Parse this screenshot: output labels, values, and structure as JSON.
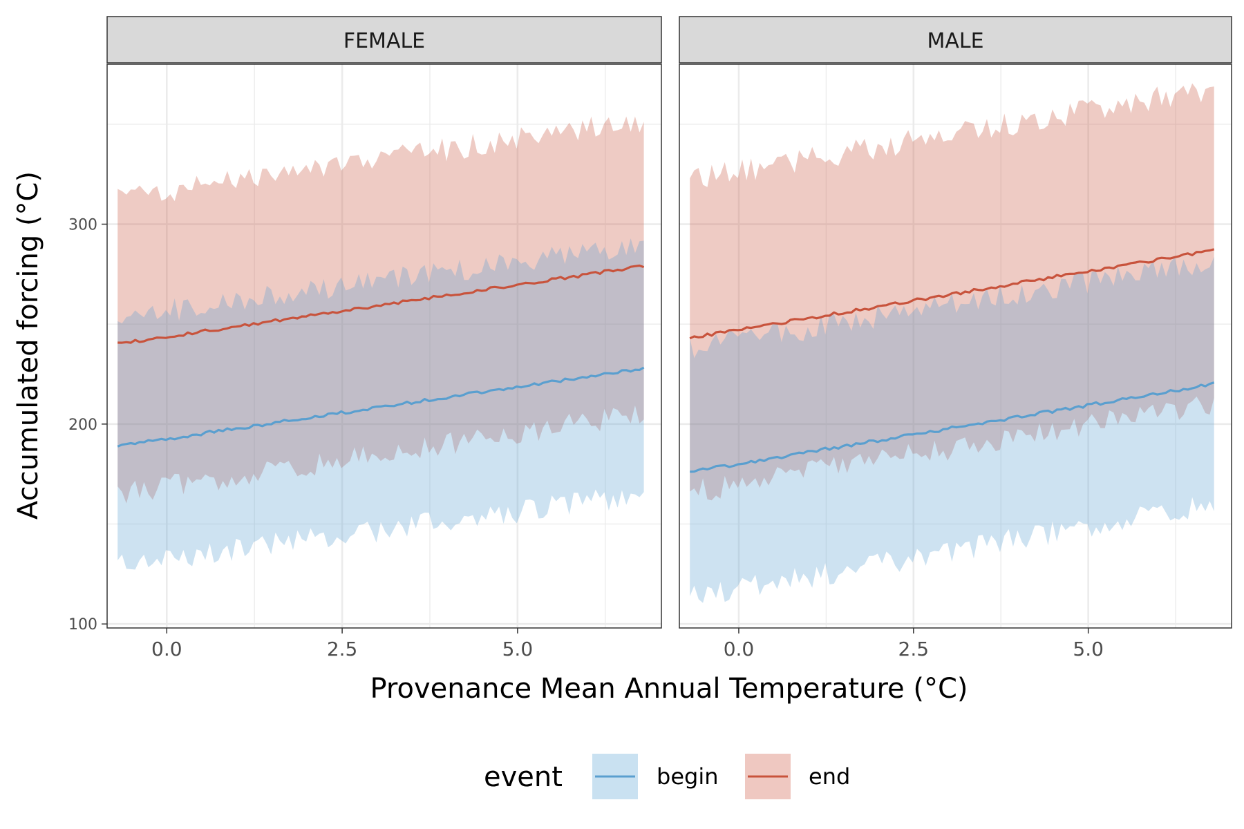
{
  "chart_data": {
    "type": "line",
    "xlabel": "Provenance Mean Annual Temperature (°C)",
    "ylabel": "Accumulated forcing (°C)",
    "xlim": [
      -0.85,
      7.05
    ],
    "ylim": [
      98,
      380
    ],
    "x_ticks": [
      0.0,
      2.5,
      5.0
    ],
    "x_tick_labels": [
      "0.0",
      "2.5",
      "5.0"
    ],
    "y_ticks": [
      100,
      200,
      300
    ],
    "y_tick_labels": [
      "100",
      "200",
      "300"
    ],
    "x_range": [
      -0.7,
      6.8
    ],
    "grid": true,
    "legend": {
      "title": "event",
      "position": "bottom",
      "entries": [
        {
          "label": "begin",
          "color": "#5a9fcf",
          "fill": "#c9e1f1"
        },
        {
          "label": "end",
          "color": "#c8533c",
          "fill": "#efc8c1"
        }
      ]
    },
    "panels": [
      {
        "strip": "FEMALE",
        "series": [
          {
            "event": "begin",
            "fit_start": 189,
            "fit_end": 228,
            "lower_start": 129,
            "lower_end": 165,
            "upper_start": 253,
            "upper_end": 290
          },
          {
            "event": "end",
            "fit_start": 240,
            "fit_end": 279,
            "lower_start": 165,
            "lower_end": 205,
            "upper_start": 313,
            "upper_end": 352
          }
        ]
      },
      {
        "strip": "MALE",
        "series": [
          {
            "event": "begin",
            "fit_start": 176,
            "fit_end": 220,
            "lower_start": 113,
            "lower_end": 160,
            "upper_start": 238,
            "upper_end": 282
          },
          {
            "event": "end",
            "fit_start": 243,
            "fit_end": 287,
            "lower_start": 166,
            "lower_end": 210,
            "upper_start": 322,
            "upper_end": 368
          }
        ]
      }
    ]
  }
}
